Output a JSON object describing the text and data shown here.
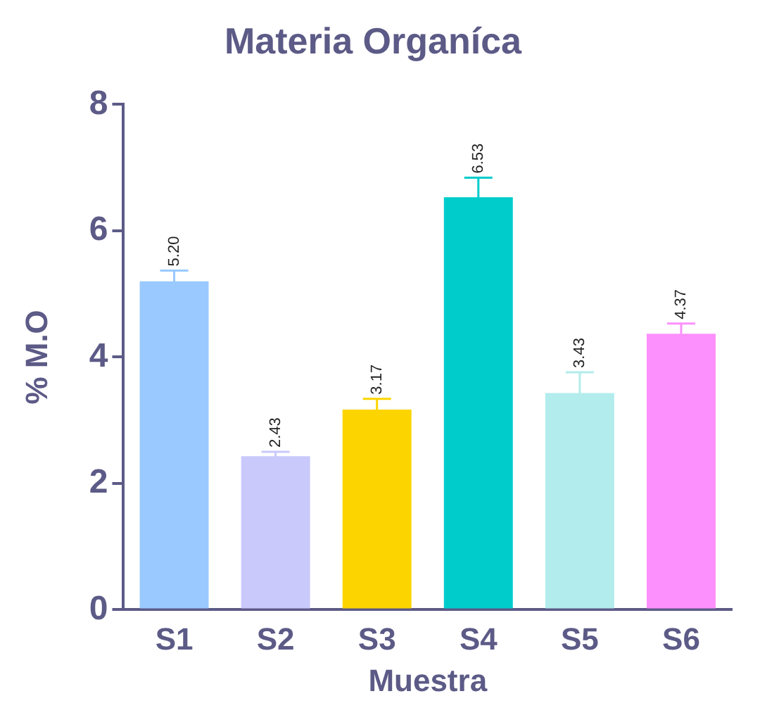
{
  "chart_data": {
    "type": "bar",
    "title": "Materia Organíca",
    "xlabel": "Muestra",
    "ylabel": "% M.O",
    "categories": [
      "S1",
      "S2",
      "S3",
      "S4",
      "S5",
      "S6"
    ],
    "values": [
      5.2,
      2.43,
      3.17,
      6.53,
      3.43,
      4.37
    ],
    "value_labels": [
      "5.20",
      "2.43",
      "3.17",
      "6.53",
      "3.43",
      "4.37"
    ],
    "errors": [
      0.17,
      0.07,
      0.17,
      0.31,
      0.33,
      0.16
    ],
    "colors": [
      "#99c9ff",
      "#c9c9fc",
      "#fcd500",
      "#00cccc",
      "#b3ecec",
      "#fc90fc"
    ],
    "ylim": [
      0,
      8
    ],
    "yticks": [
      0,
      2,
      4,
      6,
      8
    ],
    "grid": false,
    "legend": false
  }
}
